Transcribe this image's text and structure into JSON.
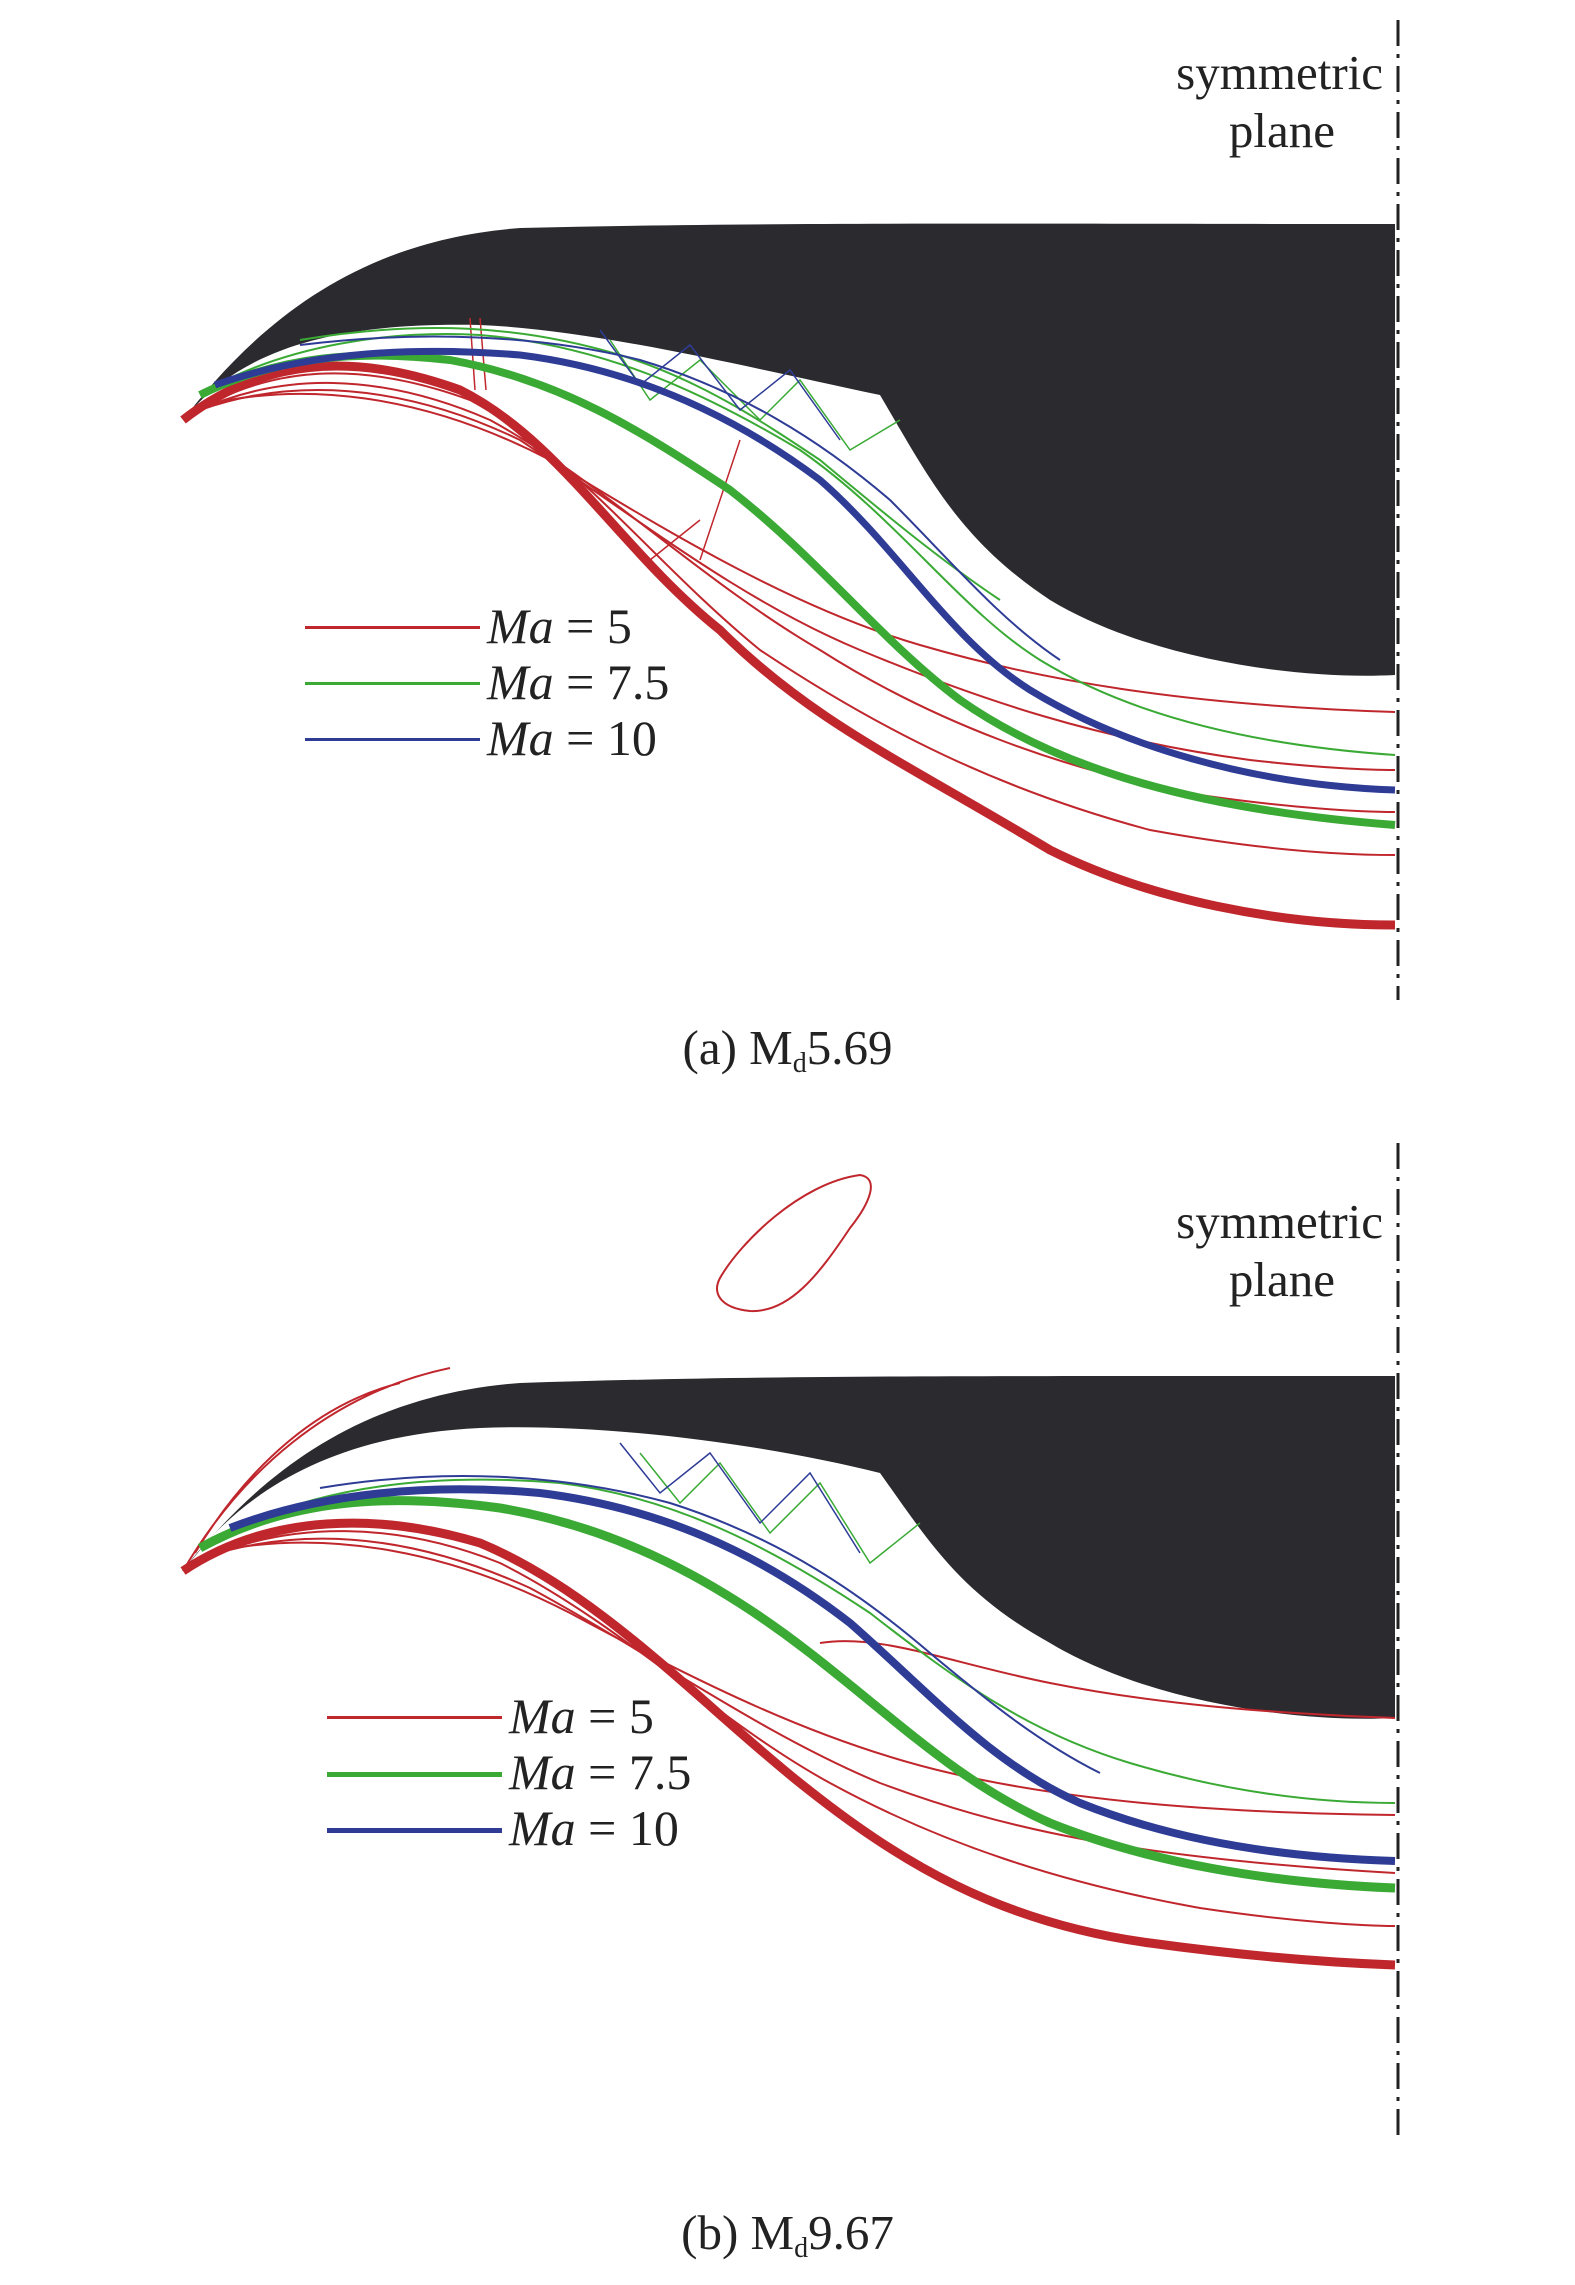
{
  "figure": {
    "panels": [
      {
        "id": "a",
        "caption_prefix": "(a) M",
        "caption_sub": "d",
        "caption_suffix": "5.69",
        "symmetric_label_line1": "symmetric",
        "symmetric_label_line2": "plane",
        "legend": [
          {
            "var": "Ma",
            "rest": " = 5",
            "color": "#c0272d"
          },
          {
            "var": "Ma",
            "rest": " = 7.5",
            "color": "#3aaa35"
          },
          {
            "var": "Ma",
            "rest": " = 10",
            "color": "#2e3c96"
          }
        ]
      },
      {
        "id": "b",
        "caption_prefix": "(b) M",
        "caption_sub": "d",
        "caption_suffix": "9.67",
        "symmetric_label_line1": "symmetric",
        "symmetric_label_line2": "plane",
        "legend": [
          {
            "var": "Ma",
            "rest": " = 5",
            "color": "#c0272d"
          },
          {
            "var": "Ma",
            "rest": " = 7.5",
            "color": "#3aaa35"
          },
          {
            "var": "Ma",
            "rest": " = 10",
            "color": "#2e3c96"
          }
        ]
      }
    ],
    "colors": {
      "body": "#2b2b2f",
      "ma5": "#c0272d",
      "ma7_5": "#3aaa35",
      "ma10": "#2e3c96",
      "symmetry_line": "#222222"
    }
  }
}
